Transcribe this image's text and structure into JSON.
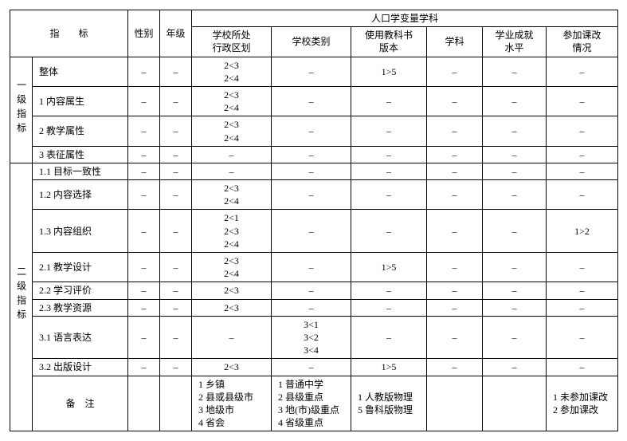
{
  "header": {
    "indicator": "指　　标",
    "sex": "性别",
    "grade": "年级",
    "demog": "人口学变量学科",
    "v1": "学校所处",
    "v1b": "行政区划",
    "v2": "学校类别",
    "v3": "使用教科书",
    "v3b": "版本",
    "v4": "学科",
    "v5": "学业成就",
    "v5b": "水平",
    "v6": "参加课改",
    "v6b": "情况"
  },
  "cat1": "一级指标",
  "cat2": "二级指标",
  "rows1": [
    {
      "name": "整体",
      "sex": "–",
      "grade": "–",
      "v1a": "2<3",
      "v1b": "2<4",
      "v2": "–",
      "v3": "1>5",
      "v4": "–",
      "v5": "–",
      "v6": "–"
    },
    {
      "name": "1 内容属生",
      "sex": "–",
      "grade": "–",
      "v1a": "2<3",
      "v1b": "2<4",
      "v2": "–",
      "v3": "–",
      "v4": "–",
      "v5": "–",
      "v6": "–"
    },
    {
      "name": "2 教学属性",
      "sex": "–",
      "grade": "–",
      "v1a": "2<3",
      "v1b": "2<4",
      "v2": "–",
      "v3": "–",
      "v4": "–",
      "v5": "–",
      "v6": "–"
    },
    {
      "name": "3 表征属性",
      "sex": "–",
      "grade": "–",
      "v1a": "–",
      "v1b": "",
      "v2": "–",
      "v3": "–",
      "v4": "–",
      "v5": "–",
      "v6": "–"
    }
  ],
  "rows2": [
    {
      "name": "1.1 目标一致性",
      "sex": "–",
      "grade": "–",
      "v1": [
        "–"
      ],
      "v2": "–",
      "v3": "–",
      "v4": "–",
      "v5": "–",
      "v6": "–"
    },
    {
      "name": "1.2 内容选择",
      "sex": "–",
      "grade": "–",
      "v1": [
        "2<3",
        "2<4"
      ],
      "v2": "–",
      "v3": "–",
      "v4": "–",
      "v5": "–",
      "v6": "–"
    },
    {
      "name": "1.3 内容组织",
      "sex": "–",
      "grade": "–",
      "v1": [
        "2<1",
        "2<3",
        "2<4"
      ],
      "v2": "–",
      "v3": "–",
      "v4": "–",
      "v5": "–",
      "v6": "1>2"
    },
    {
      "name": "2.1 教学设计",
      "sex": "–",
      "grade": "–",
      "v1": [
        "2<3",
        "2<4"
      ],
      "v2": "–",
      "v3": "1>5",
      "v4": "–",
      "v5": "–",
      "v6": "–"
    },
    {
      "name": "2.2 学习评价",
      "sex": "–",
      "grade": "–",
      "v1": [
        "2<3"
      ],
      "v2": "–",
      "v3": "–",
      "v4": "–",
      "v5": "–",
      "v6": "–"
    },
    {
      "name": "2.3 教学资源",
      "sex": "–",
      "grade": "–",
      "v1": [
        "2<3"
      ],
      "v2": "–",
      "v3": "–",
      "v4": "–",
      "v5": "–",
      "v6": "–"
    },
    {
      "name": "3.1 语言表达",
      "sex": "–",
      "grade": "–",
      "v1": [
        "–"
      ],
      "v2l": [
        "3<1",
        "3<2",
        "3<4"
      ],
      "v3": "–",
      "v4": "–",
      "v5": "–",
      "v6": "–"
    },
    {
      "name": "3.2 出版设计",
      "sex": "–",
      "grade": "–",
      "v1": [
        "2<3"
      ],
      "v2": "–",
      "v3": "1>5",
      "v4": "–",
      "v5": "–",
      "v6": "–"
    }
  ],
  "remarks": {
    "label": "备　注",
    "v1": [
      "1 乡镇",
      "2 县或县级市",
      "3 地级市",
      "4 省会"
    ],
    "v2": [
      "1 普通中学",
      "2 县级重点",
      "3 地(市)级重点",
      "4 省级重点"
    ],
    "v3": [
      "1 人教版物理",
      "5 鲁科版物理"
    ],
    "v6": [
      "1 未参加课改",
      "2 参加课改"
    ]
  }
}
